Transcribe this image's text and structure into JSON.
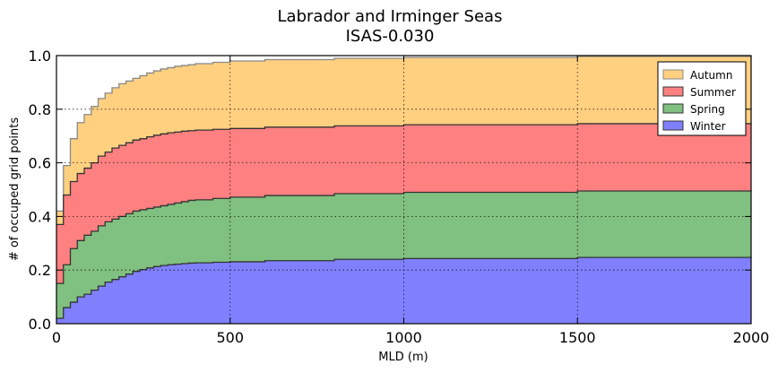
{
  "chart_data": {
    "type": "area",
    "stacked": true,
    "step": true,
    "title": "Labrador and Irminger Seas",
    "subtitle": "ISAS-0.030",
    "xlabel": "MLD (m)",
    "ylabel": "# of occuped grid points",
    "xlim": [
      0,
      2000
    ],
    "ylim": [
      0,
      1.0
    ],
    "xticks": [
      0,
      500,
      1000,
      1500,
      2000
    ],
    "xtick_labels": [
      "0",
      "500",
      "1000",
      "1500",
      "2000"
    ],
    "yticks": [
      0.0,
      0.2,
      0.4,
      0.6,
      0.8,
      1.0
    ],
    "ytick_labels": [
      "0.0",
      "0.2",
      "0.4",
      "0.6",
      "0.8",
      "1.0"
    ],
    "grid": true,
    "legend_position": "top-right",
    "legend_order": [
      "Autumn",
      "Summer",
      "Spring",
      "Winter"
    ],
    "step_width": 20,
    "x": [
      0,
      20,
      40,
      60,
      80,
      100,
      120,
      140,
      160,
      180,
      200,
      220,
      240,
      260,
      280,
      300,
      320,
      340,
      360,
      380,
      400,
      450,
      500,
      600,
      800,
      1000,
      1500,
      2000
    ],
    "series": [
      {
        "name": "Winter",
        "color": "#8080ff",
        "edge": "#333333",
        "values": [
          0.02,
          0.06,
          0.08,
          0.1,
          0.11,
          0.125,
          0.14,
          0.155,
          0.165,
          0.175,
          0.185,
          0.195,
          0.202,
          0.208,
          0.213,
          0.217,
          0.22,
          0.222,
          0.224,
          0.226,
          0.227,
          0.229,
          0.231,
          0.235,
          0.24,
          0.243,
          0.247,
          0.249
        ]
      },
      {
        "name": "Spring",
        "color": "#80c080",
        "edge": "#333333",
        "values": [
          0.15,
          0.22,
          0.28,
          0.31,
          0.33,
          0.345,
          0.365,
          0.38,
          0.39,
          0.4,
          0.41,
          0.42,
          0.425,
          0.43,
          0.435,
          0.44,
          0.445,
          0.45,
          0.455,
          0.46,
          0.462,
          0.467,
          0.472,
          0.478,
          0.485,
          0.49,
          0.495,
          0.497
        ]
      },
      {
        "name": "Summer",
        "color": "#ff8080",
        "edge": "#333333",
        "values": [
          0.37,
          0.48,
          0.53,
          0.56,
          0.58,
          0.6,
          0.625,
          0.64,
          0.655,
          0.665,
          0.675,
          0.685,
          0.69,
          0.697,
          0.703,
          0.708,
          0.712,
          0.715,
          0.718,
          0.72,
          0.722,
          0.725,
          0.728,
          0.733,
          0.738,
          0.742,
          0.746,
          0.748
        ]
      },
      {
        "name": "Autumn",
        "color": "#ffd080",
        "edge": "#888888",
        "values": [
          0.42,
          0.59,
          0.69,
          0.75,
          0.78,
          0.81,
          0.84,
          0.86,
          0.88,
          0.895,
          0.905,
          0.915,
          0.925,
          0.935,
          0.943,
          0.95,
          0.955,
          0.96,
          0.963,
          0.966,
          0.97,
          0.975,
          0.98,
          0.985,
          0.99,
          0.993,
          0.997,
          0.998
        ]
      }
    ]
  }
}
